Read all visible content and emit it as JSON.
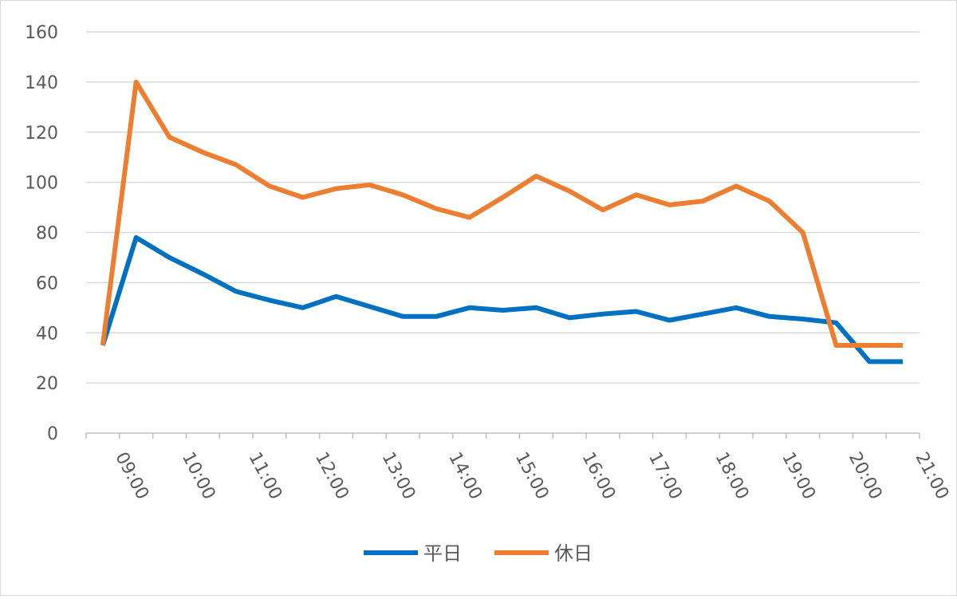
{
  "chart_data": {
    "type": "line",
    "title": "",
    "xlabel": "",
    "ylabel": "",
    "ylim": [
      0,
      160
    ],
    "yticks": [
      0,
      20,
      40,
      60,
      80,
      100,
      120,
      140,
      160
    ],
    "x_tick_labels": [
      "09:00",
      "10:00",
      "11:00",
      "12:00",
      "13:00",
      "14:00",
      "15:00",
      "16:00",
      "17:00",
      "18:00",
      "19:00",
      "20:00",
      "21:00"
    ],
    "x": [
      "08:45",
      "09:15",
      "09:45",
      "10:15",
      "10:45",
      "11:15",
      "11:45",
      "12:15",
      "12:45",
      "13:15",
      "13:45",
      "14:15",
      "14:45",
      "15:15",
      "15:45",
      "16:15",
      "16:45",
      "17:15",
      "17:45",
      "18:15",
      "18:45",
      "19:15",
      "19:45",
      "20:15",
      "20:45"
    ],
    "grid": true,
    "legend_position": "bottom",
    "series": [
      {
        "name": "平日",
        "color": "#0070c0",
        "values": [
          35,
          78,
          70,
          63.5,
          56.5,
          53,
          50,
          54.5,
          50.5,
          46.5,
          46.5,
          50,
          49,
          50,
          46,
          47.5,
          48.5,
          45,
          47.5,
          50,
          46.5,
          45.5,
          44,
          28.5,
          28.5
        ]
      },
      {
        "name": "休日",
        "color": "#ed7d31",
        "values": [
          35,
          140,
          118,
          112,
          107,
          98.5,
          94,
          97.5,
          99,
          95,
          89.5,
          86,
          94,
          102.5,
          96.5,
          89,
          95,
          91,
          92.5,
          98.5,
          92.5,
          80,
          35,
          35,
          35
        ]
      }
    ]
  }
}
